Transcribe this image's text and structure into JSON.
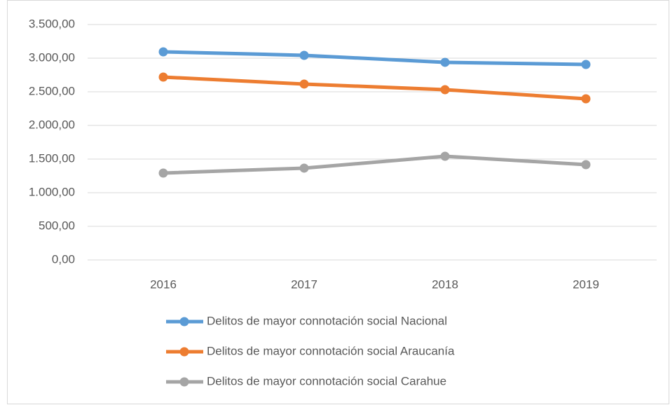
{
  "chart_data": {
    "type": "line",
    "categories": [
      "2016",
      "2017",
      "2018",
      "2019"
    ],
    "series": [
      {
        "name": "Delitos de mayor connotación social Nacional",
        "color": "#5b9bd5",
        "values": [
          3094,
          3042,
          2938,
          2906
        ]
      },
      {
        "name": "Delitos de mayor connotación social Araucanía",
        "color": "#ed7d31",
        "values": [
          2719,
          2615,
          2531,
          2396
        ]
      },
      {
        "name": "Delitos de mayor connotación social Carahue",
        "color": "#a5a5a5",
        "values": [
          1292,
          1365,
          1542,
          1417
        ]
      }
    ],
    "ylim": [
      0,
      3500
    ],
    "yticks": [
      {
        "value": 0,
        "label": "0,00"
      },
      {
        "value": 500,
        "label": "500,00"
      },
      {
        "value": 1000,
        "label": "1.000,00"
      },
      {
        "value": 1500,
        "label": "1.500,00"
      },
      {
        "value": 2000,
        "label": "2.000,00"
      },
      {
        "value": 2500,
        "label": "2.500,00"
      },
      {
        "value": 3000,
        "label": "3.000,00"
      },
      {
        "value": 3500,
        "label": "3.500,00"
      }
    ],
    "grid": true,
    "legend": "bottom"
  }
}
